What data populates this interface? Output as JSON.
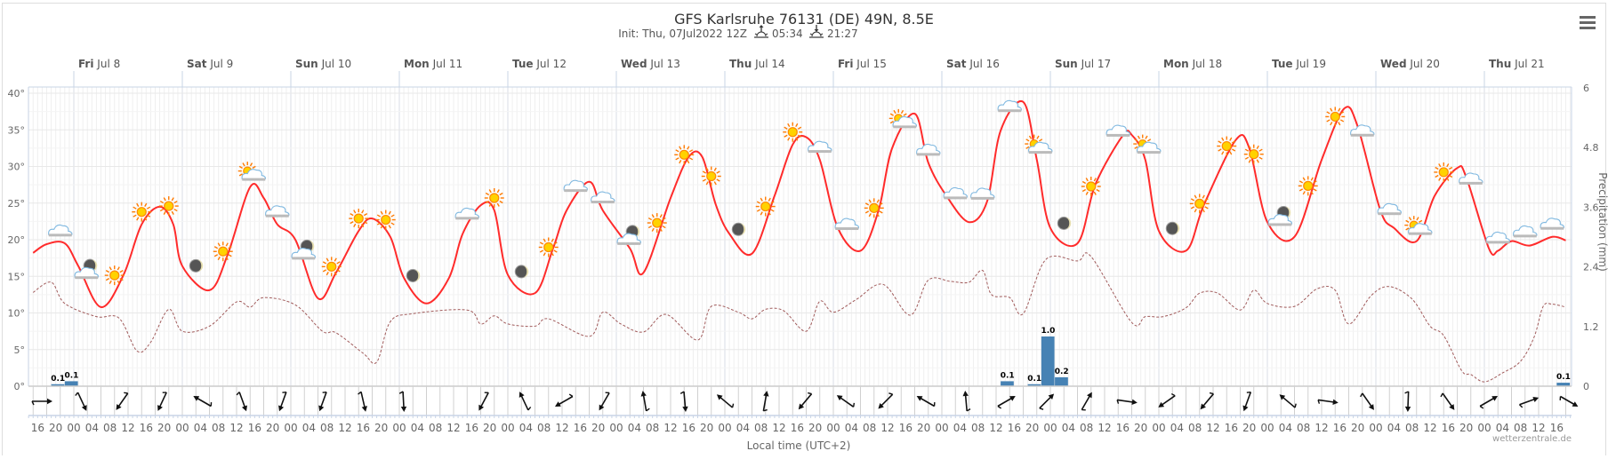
{
  "header": {
    "title": "GFS Karlsruhe 76131 (DE) 49N, 8.5E",
    "init": "Init: Thu, 07Jul2022 12Z",
    "sunrise": "05:34",
    "sunset": "21:27",
    "menu_icon": "hamburger-menu-icon"
  },
  "footer": {
    "xlabel": "Local time (UTC+2)",
    "credit": "wetterzentrale.de"
  },
  "chart_data": {
    "type": "line",
    "colors": {
      "temperature": "#ff2b2b",
      "dewpoint": "#a05a5a",
      "precipitation": "#4682b4"
    },
    "grid": true,
    "y_left": {
      "ticks": [
        "0°",
        "5°",
        "10°",
        "15°",
        "20°",
        "25°",
        "30°",
        "35°",
        "40°"
      ],
      "ylim": [
        0,
        40
      ]
    },
    "y_right": {
      "label": "Precipitation (mm)",
      "ticks": [
        "0",
        "1.2",
        "2.4",
        "3.6",
        "4.8",
        "6"
      ],
      "ylim": [
        0,
        6
      ]
    },
    "days": [
      {
        "weekday": "Fri",
        "date": "Jul 8"
      },
      {
        "weekday": "Sat",
        "date": "Jul 9"
      },
      {
        "weekday": "Sun",
        "date": "Jul 10"
      },
      {
        "weekday": "Mon",
        "date": "Jul 11"
      },
      {
        "weekday": "Tue",
        "date": "Jul 12"
      },
      {
        "weekday": "Wed",
        "date": "Jul 13"
      },
      {
        "weekday": "Thu",
        "date": "Jul 14"
      },
      {
        "weekday": "Fri",
        "date": "Jul 15"
      },
      {
        "weekday": "Sat",
        "date": "Jul 16"
      },
      {
        "weekday": "Sun",
        "date": "Jul 17"
      },
      {
        "weekday": "Mon",
        "date": "Jul 18"
      },
      {
        "weekday": "Tue",
        "date": "Jul 19"
      },
      {
        "weekday": "Wed",
        "date": "Jul 20"
      },
      {
        "weekday": "Thu",
        "date": "Jul 21"
      }
    ],
    "x_tick_labels": [
      "16",
      "20",
      "00",
      "04",
      "08",
      "12",
      "16",
      "20",
      "00",
      "04",
      "08",
      "12",
      "16",
      "20",
      "00",
      "04",
      "08",
      "12",
      "16",
      "20",
      "00",
      "04",
      "08",
      "12",
      "16",
      "20",
      "00",
      "04",
      "08",
      "12",
      "16",
      "20",
      "00",
      "04",
      "08",
      "12",
      "16",
      "20",
      "00",
      "04",
      "08",
      "12",
      "16",
      "20",
      "00",
      "04",
      "08",
      "12",
      "16",
      "20",
      "00",
      "04",
      "08",
      "12",
      "16",
      "20",
      "00",
      "04",
      "08",
      "12",
      "16",
      "20",
      "00",
      "04",
      "08",
      "12",
      "16",
      "20",
      "00",
      "04",
      "08",
      "12",
      "16",
      "20",
      "00",
      "04",
      "08",
      "12",
      "16",
      "20",
      "00",
      "04",
      "08",
      "12",
      "16"
    ],
    "temperature": [
      [
        "07-07 15",
        18.2
      ],
      [
        "07-07 18",
        19.4
      ],
      [
        "07-07 22",
        19.5
      ],
      [
        "07-08 01",
        16.4
      ],
      [
        "07-08 06",
        10.8
      ],
      [
        "07-08 11",
        15.2
      ],
      [
        "07-08 15",
        22.1
      ],
      [
        "07-08 19",
        24.5
      ],
      [
        "07-08 22",
        22.1
      ],
      [
        "07-09 00",
        16.4
      ],
      [
        "07-09 06",
        13.1
      ],
      [
        "07-09 10",
        17.9
      ],
      [
        "07-09 15",
        27.2
      ],
      [
        "07-09 18",
        25.7
      ],
      [
        "07-09 21",
        22.1
      ],
      [
        "07-10 01",
        20.0
      ],
      [
        "07-10 06",
        12.0
      ],
      [
        "07-10 10",
        15.5
      ],
      [
        "07-10 15",
        21.2
      ],
      [
        "07-10 18",
        22.9
      ],
      [
        "07-10 22",
        20.4
      ],
      [
        "07-11 01",
        14.8
      ],
      [
        "07-11 06",
        11.3
      ],
      [
        "07-11 11",
        14.8
      ],
      [
        "07-11 14",
        20.8
      ],
      [
        "07-11 18",
        24.7
      ],
      [
        "07-11 21",
        24.0
      ],
      [
        "07-12 00",
        15.2
      ],
      [
        "07-12 06",
        12.7
      ],
      [
        "07-12 10",
        18.8
      ],
      [
        "07-12 13",
        24.0
      ],
      [
        "07-12 18",
        27.9
      ],
      [
        "07-12 21",
        24.0
      ],
      [
        "07-13 03",
        18.8
      ],
      [
        "07-13 06",
        15.5
      ],
      [
        "07-13 12",
        25.7
      ],
      [
        "07-13 16",
        31.3
      ],
      [
        "07-13 19",
        31.3
      ],
      [
        "07-13 22",
        24.8
      ],
      [
        "07-14 01",
        20.8
      ],
      [
        "07-14 06",
        18.1
      ],
      [
        "07-14 11",
        26.0
      ],
      [
        "07-14 15",
        33.0
      ],
      [
        "07-14 18",
        34.0
      ],
      [
        "07-14 21",
        30.9
      ],
      [
        "07-15 01",
        21.6
      ],
      [
        "07-15 06",
        18.5
      ],
      [
        "07-15 10",
        24.0
      ],
      [
        "07-15 13",
        32.5
      ],
      [
        "07-15 18",
        37.2
      ],
      [
        "07-15 21",
        30.5
      ],
      [
        "07-16 01",
        26.0
      ],
      [
        "07-16 06",
        22.4
      ],
      [
        "07-16 10",
        25.2
      ],
      [
        "07-16 13",
        34.9
      ],
      [
        "07-16 18",
        38.8
      ],
      [
        "07-16 21",
        30.9
      ],
      [
        "07-17 00",
        21.6
      ],
      [
        "07-17 06",
        19.5
      ],
      [
        "07-17 10",
        27.6
      ],
      [
        "07-17 16",
        34.2
      ],
      [
        "07-17 18",
        34.3
      ],
      [
        "07-17 21",
        30.9
      ],
      [
        "07-18 00",
        21.2
      ],
      [
        "07-18 06",
        18.5
      ],
      [
        "07-18 10",
        24.8
      ],
      [
        "07-18 17",
        33.6
      ],
      [
        "07-18 20",
        32.5
      ],
      [
        "07-19 00",
        22.4
      ],
      [
        "07-19 06",
        20.4
      ],
      [
        "07-19 12",
        30.9
      ],
      [
        "07-19 17",
        37.9
      ],
      [
        "07-19 20",
        35.4
      ],
      [
        "07-20 01",
        24.0
      ],
      [
        "07-20 04",
        21.6
      ],
      [
        "07-20 09",
        19.8
      ],
      [
        "07-20 13",
        26.0
      ],
      [
        "07-20 18",
        29.8
      ],
      [
        "07-20 20",
        28.5
      ],
      [
        "07-21 01",
        18.8
      ],
      [
        "07-21 03",
        18.5
      ],
      [
        "07-21 06",
        19.8
      ],
      [
        "07-21 10",
        19.2
      ],
      [
        "07-21 15",
        20.4
      ],
      [
        "07-21 18",
        19.9
      ]
    ],
    "dewpoint": [
      [
        "07-07 15",
        12.8
      ],
      [
        "07-07 19",
        14.2
      ],
      [
        "07-07 22",
        11.3
      ],
      [
        "07-08 05",
        9.5
      ],
      [
        "07-08 10",
        9.3
      ],
      [
        "07-08 14",
        4.8
      ],
      [
        "07-08 17",
        6.0
      ],
      [
        "07-08 21",
        10.5
      ],
      [
        "07-09 00",
        7.5
      ],
      [
        "07-09 06",
        8.2
      ],
      [
        "07-09 12",
        11.5
      ],
      [
        "07-09 15",
        10.8
      ],
      [
        "07-09 18",
        12.1
      ],
      [
        "07-10 01",
        11.1
      ],
      [
        "07-10 07",
        7.5
      ],
      [
        "07-10 10",
        7.3
      ],
      [
        "07-10 16",
        4.5
      ],
      [
        "07-10 19",
        3.3
      ],
      [
        "07-10 22",
        8.8
      ],
      [
        "07-11 03",
        9.9
      ],
      [
        "07-11 15",
        10.4
      ],
      [
        "07-11 18",
        8.5
      ],
      [
        "07-11 21",
        9.6
      ],
      [
        "07-12 00",
        8.5
      ],
      [
        "07-12 06",
        8.2
      ],
      [
        "07-12 09",
        9.2
      ],
      [
        "07-12 18",
        6.8
      ],
      [
        "07-12 21",
        10.1
      ],
      [
        "07-13 01",
        8.5
      ],
      [
        "07-13 06",
        7.4
      ],
      [
        "07-13 11",
        9.8
      ],
      [
        "07-13 18",
        6.3
      ],
      [
        "07-13 21",
        10.9
      ],
      [
        "07-14 03",
        10.1
      ],
      [
        "07-14 06",
        9.2
      ],
      [
        "07-14 09",
        10.5
      ],
      [
        "07-14 13",
        10.3
      ],
      [
        "07-14 18",
        7.5
      ],
      [
        "07-14 21",
        11.6
      ],
      [
        "07-15 00",
        10.1
      ],
      [
        "07-15 05",
        11.8
      ],
      [
        "07-15 11",
        13.9
      ],
      [
        "07-15 17",
        9.7
      ],
      [
        "07-15 21",
        14.5
      ],
      [
        "07-16 02",
        14.3
      ],
      [
        "07-16 06",
        14.2
      ],
      [
        "07-16 09",
        15.8
      ],
      [
        "07-16 11",
        12.5
      ],
      [
        "07-16 15",
        12.1
      ],
      [
        "07-16 18",
        9.9
      ],
      [
        "07-16 23",
        17.3
      ],
      [
        "07-17 06",
        17.1
      ],
      [
        "07-17 09",
        17.7
      ],
      [
        "07-17 18",
        8.7
      ],
      [
        "07-17 21",
        9.5
      ],
      [
        "07-18 01",
        9.5
      ],
      [
        "07-18 06",
        10.7
      ],
      [
        "07-18 09",
        12.7
      ],
      [
        "07-18 13",
        12.7
      ],
      [
        "07-18 18",
        10.4
      ],
      [
        "07-18 21",
        13.1
      ],
      [
        "07-19 00",
        11.3
      ],
      [
        "07-19 06",
        10.9
      ],
      [
        "07-19 11",
        13.3
      ],
      [
        "07-19 15",
        13.1
      ],
      [
        "07-19 18",
        8.5
      ],
      [
        "07-19 23",
        12.4
      ],
      [
        "07-20 03",
        13.6
      ],
      [
        "07-20 08",
        11.9
      ],
      [
        "07-20 12",
        8.2
      ],
      [
        "07-20 15",
        6.9
      ],
      [
        "07-20 19",
        2.1
      ],
      [
        "07-20 21",
        1.6
      ],
      [
        "07-21 00",
        0.6
      ],
      [
        "07-21 04",
        1.8
      ],
      [
        "07-21 08",
        3.4
      ],
      [
        "07-21 11",
        6.7
      ],
      [
        "07-21 13",
        10.9
      ],
      [
        "07-21 15",
        11.2
      ],
      [
        "07-21 18",
        10.8
      ]
    ],
    "precipitation": [
      {
        "start": "07-07 19",
        "end": "07-07 22",
        "value": 0.04,
        "label": "0.1"
      },
      {
        "start": "07-07 22",
        "end": "07-08 01",
        "value": 0.1,
        "label": "0.1"
      },
      {
        "start": "07-16 13",
        "end": "07-16 16",
        "value": 0.1,
        "label": "0.1"
      },
      {
        "start": "07-16 19",
        "end": "07-16 22",
        "value": 0.04,
        "label": "0.1"
      },
      {
        "start": "07-16 22",
        "end": "07-17 01",
        "value": 1.0,
        "label": "1.0"
      },
      {
        "start": "07-17 01",
        "end": "07-17 04",
        "value": 0.18,
        "label": "0.2"
      },
      {
        "start": "07-21 16",
        "end": "07-21 19",
        "value": 0.07,
        "label": "0.1"
      }
    ],
    "weather_icons_start": "07-07 21",
    "weather_icons_step_hours": 6,
    "weather_icons": [
      "cloud",
      "moon-cloud",
      "sun",
      "sun",
      "sun",
      "moon",
      "sun",
      "sun-cloud",
      "cloud",
      "moon-cloud",
      "sun",
      "sun",
      "sun",
      "moon",
      null,
      "cloud",
      "sun",
      "moon",
      "sun",
      "cloud",
      "cloud",
      "moon-cloud",
      "sun",
      "sun",
      "sun",
      "moon",
      "sun",
      "sun",
      "cloud",
      "cloud",
      "sun",
      "sun-cloud",
      "cloud",
      "cloud",
      "cloud",
      "cloud",
      "sun-cloud",
      "moon",
      "sun",
      "cloud",
      "sun-cloud",
      "moon",
      "sun",
      "sun",
      "sun",
      "moon-cloud",
      "sun",
      "sun",
      "cloud",
      "cloud",
      "sun-cloud",
      "sun",
      "cloud",
      "cloud",
      "cloud",
      "cloud"
    ],
    "wind_directions_deg": [
      90,
      155,
      215,
      205,
      300,
      160,
      200,
      200,
      167,
      177,
      null,
      208,
      335,
      240,
      210,
      350,
      175,
      310,
      10,
      220,
      305,
      225,
      300,
      355,
      60,
      45,
      30,
      98,
      235,
      220,
      200,
      310,
      98,
      145,
      182,
      145,
      60,
      70,
      120
    ]
  }
}
